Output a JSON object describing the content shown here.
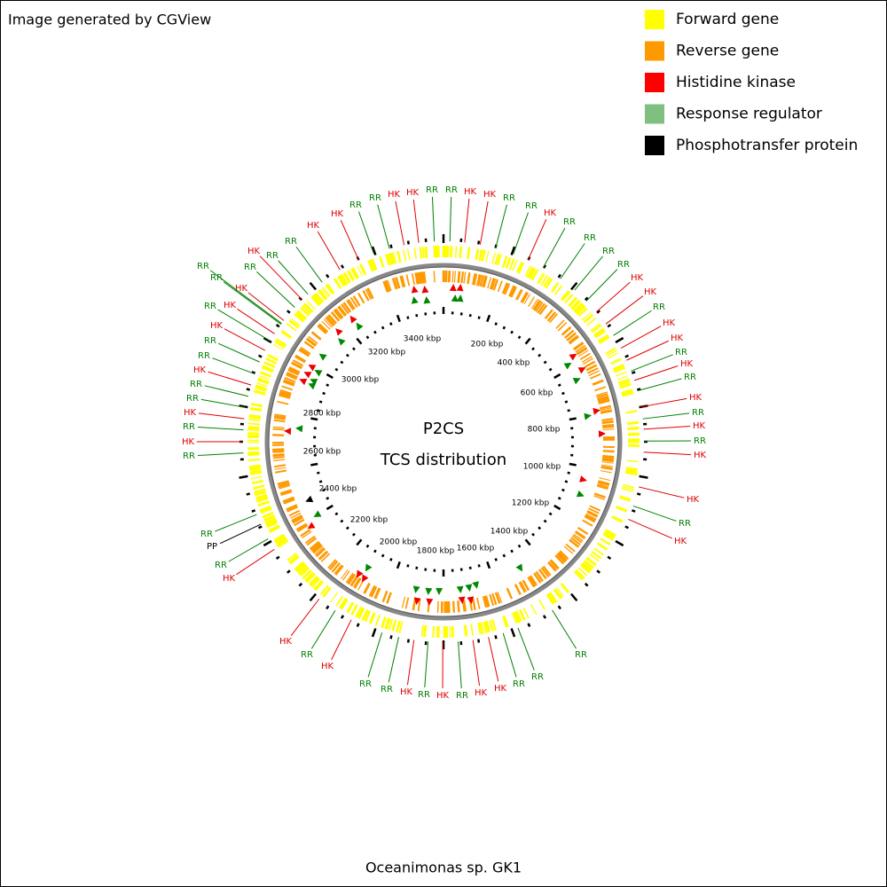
{
  "header": {
    "title": "Image generated by CGView"
  },
  "legend": [
    {
      "label": "Forward gene",
      "color": "#ffff00"
    },
    {
      "label": "Reverse gene",
      "color": "#ff9900"
    },
    {
      "label": "Histidine kinase",
      "color": "#ff0000"
    },
    {
      "label": "Response regulator",
      "color": "#7fbf7f"
    },
    {
      "label": "Phosphotransfer protein",
      "color": "#000000"
    }
  ],
  "center": {
    "title": "P2CS",
    "subtitle": "TCS distribution"
  },
  "footer": {
    "caption": "Oceanimonas sp. GK1"
  },
  "ruler": [
    "200 kbp",
    "400 kbp",
    "600 kbp",
    "800 kbp",
    "1000 kbp",
    "1200 kbp",
    "1400 kbp",
    "1600 kbp",
    "1800 kbp",
    "2000 kbp",
    "2200 kbp",
    "2400 kbp",
    "2600 kbp",
    "2800 kbp",
    "3000 kbp",
    "3200 kbp",
    "3400 kbp"
  ],
  "labels": [
    {
      "text": "RR",
      "color": "#008000"
    },
    {
      "text": "HK",
      "color": "#e00000"
    },
    {
      "text": "RR",
      "color": "#008000"
    },
    {
      "text": "HK",
      "color": "#e00000"
    },
    {
      "text": "HK",
      "color": "#e00000"
    },
    {
      "text": "RR",
      "color": "#008000"
    },
    {
      "text": "RR",
      "color": "#008000"
    },
    {
      "text": "HK",
      "color": "#e00000"
    },
    {
      "text": "HK",
      "color": "#e00000"
    },
    {
      "text": "RR",
      "color": "#008000"
    },
    {
      "text": "RR",
      "color": "#008000"
    },
    {
      "text": "HK",
      "color": "#e00000"
    },
    {
      "text": "RR",
      "color": "#008000"
    },
    {
      "text": "RR",
      "color": "#008000"
    },
    {
      "text": "RR",
      "color": "#008000"
    },
    {
      "text": "RR",
      "color": "#008000"
    },
    {
      "text": "HK",
      "color": "#e00000"
    },
    {
      "text": "HK",
      "color": "#e00000"
    },
    {
      "text": "RR",
      "color": "#008000"
    },
    {
      "text": "HK",
      "color": "#e00000"
    },
    {
      "text": "HK",
      "color": "#e00000"
    },
    {
      "text": "RR",
      "color": "#008000"
    },
    {
      "text": "HK",
      "color": "#e00000"
    },
    {
      "text": "RR",
      "color": "#008000"
    },
    {
      "text": "HK",
      "color": "#e00000"
    },
    {
      "text": "RR",
      "color": "#008000"
    },
    {
      "text": "HK",
      "color": "#e00000"
    },
    {
      "text": "RR",
      "color": "#008000"
    },
    {
      "text": "HK",
      "color": "#e00000"
    },
    {
      "text": "HK",
      "color": "#e00000"
    },
    {
      "text": "RR",
      "color": "#008000"
    },
    {
      "text": "HK",
      "color": "#e00000"
    },
    {
      "text": "RR",
      "color": "#008000"
    },
    {
      "text": "RR",
      "color": "#008000"
    },
    {
      "text": "RR",
      "color": "#008000"
    },
    {
      "text": "HK",
      "color": "#e00000"
    },
    {
      "text": "HK",
      "color": "#e00000"
    },
    {
      "text": "RR",
      "color": "#008000"
    },
    {
      "text": "HK",
      "color": "#e00000"
    },
    {
      "text": "RR",
      "color": "#008000"
    },
    {
      "text": "HK",
      "color": "#e00000"
    },
    {
      "text": "RR",
      "color": "#008000"
    },
    {
      "text": "RR",
      "color": "#008000"
    },
    {
      "text": "HK",
      "color": "#e00000"
    },
    {
      "text": "RR",
      "color": "#008000"
    },
    {
      "text": "HK",
      "color": "#e00000"
    },
    {
      "text": "HK",
      "color": "#e00000"
    },
    {
      "text": "RR",
      "color": "#008000"
    },
    {
      "text": "PP",
      "color": "#000000"
    },
    {
      "text": "RR",
      "color": "#008000"
    },
    {
      "text": "RR",
      "color": "#008000"
    },
    {
      "text": "HK",
      "color": "#e00000"
    },
    {
      "text": "RR",
      "color": "#008000"
    },
    {
      "text": "HK",
      "color": "#e00000"
    },
    {
      "text": "RR",
      "color": "#008000"
    },
    {
      "text": "RR",
      "color": "#008000"
    },
    {
      "text": "HK",
      "color": "#e00000"
    },
    {
      "text": "RR",
      "color": "#008000"
    },
    {
      "text": "RR",
      "color": "#008000"
    },
    {
      "text": "HK",
      "color": "#e00000"
    },
    {
      "text": "RR",
      "color": "#008000"
    },
    {
      "text": "HK",
      "color": "#e00000"
    },
    {
      "text": "HK",
      "color": "#e00000"
    },
    {
      "text": "RR",
      "color": "#008000"
    },
    {
      "text": "RR",
      "color": "#008000"
    },
    {
      "text": "RR",
      "color": "#008000"
    },
    {
      "text": "HK",
      "color": "#e00000"
    },
    {
      "text": "RR",
      "color": "#008000"
    },
    {
      "text": "RR",
      "color": "#008000"
    },
    {
      "text": "HK",
      "color": "#e00000"
    }
  ]
}
